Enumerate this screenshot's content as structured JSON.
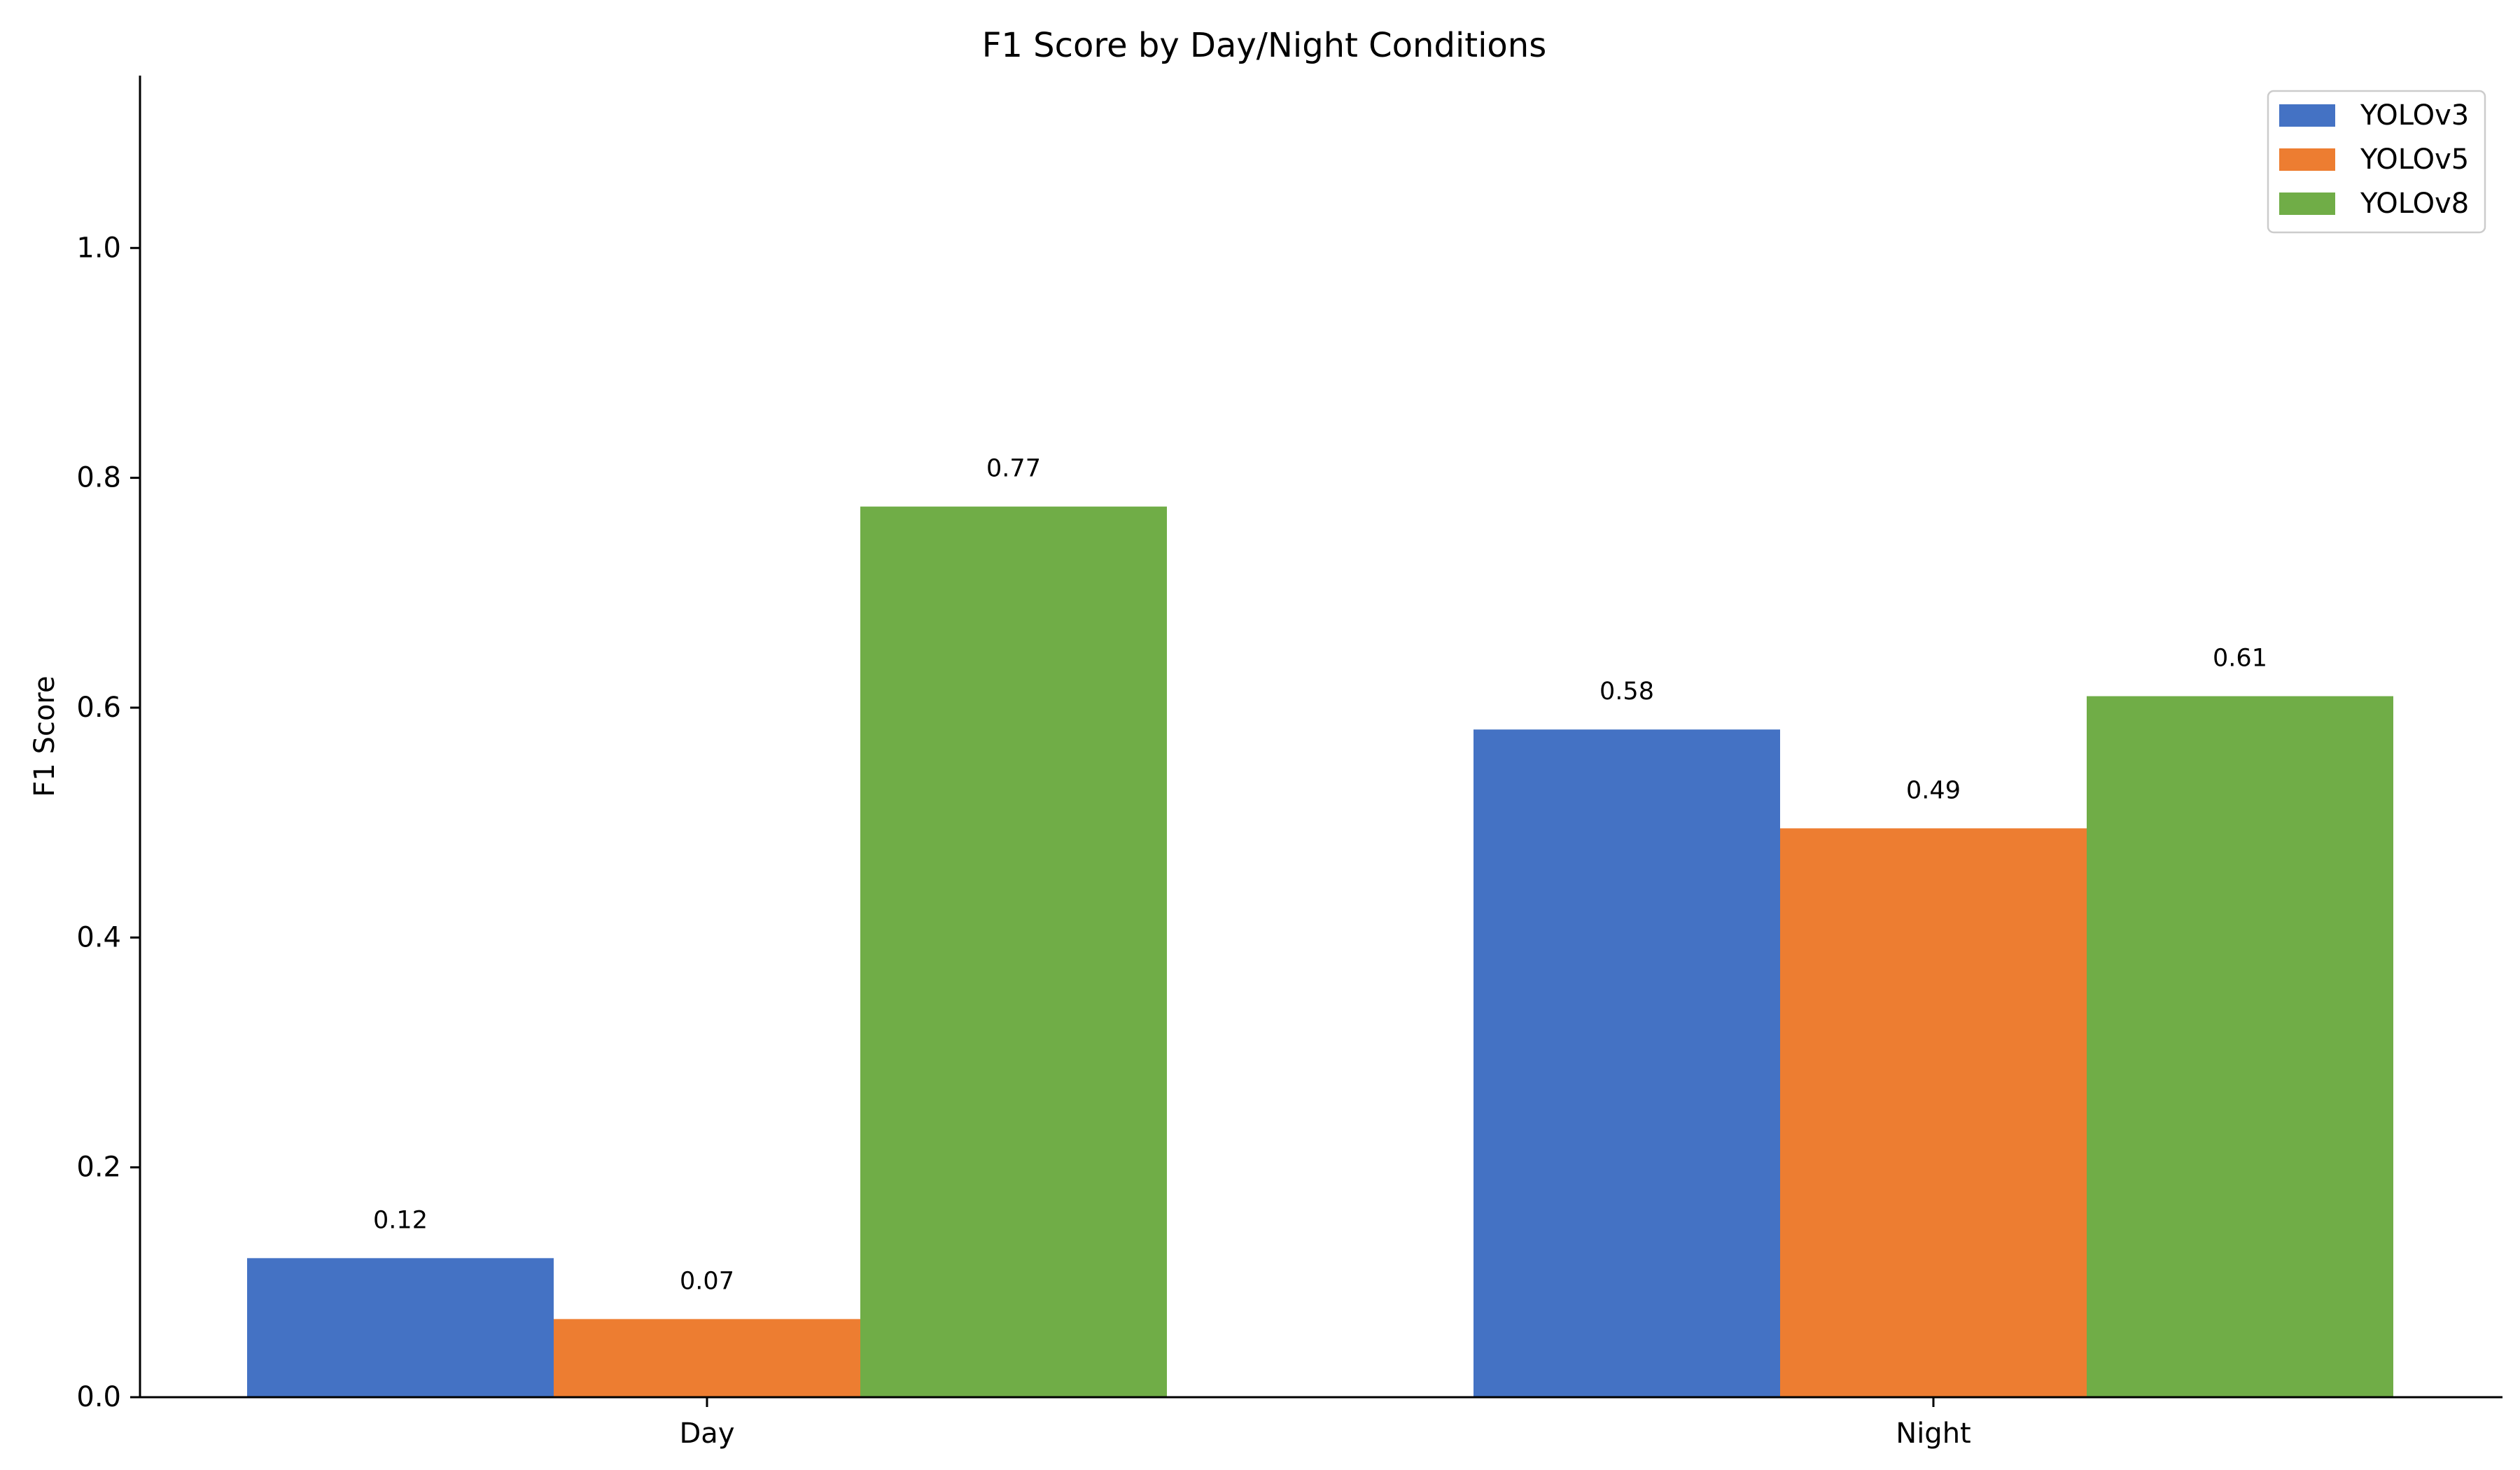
{
  "chart_data": {
    "type": "bar",
    "title": "F1 Score by Day/Night Conditions",
    "xlabel": "",
    "ylabel": "F1 Score",
    "categories": [
      "Day",
      "Night"
    ],
    "series": [
      {
        "name": "YOLOv3",
        "color": "#4472c4",
        "values": [
          0.121,
          0.581
        ],
        "labels": [
          "0.12",
          "0.58"
        ]
      },
      {
        "name": "YOLOv5",
        "color": "#ed7d31",
        "values": [
          0.068,
          0.495
        ],
        "labels": [
          "0.07",
          "0.49"
        ]
      },
      {
        "name": "YOLOv8",
        "color": "#70ad47",
        "values": [
          0.775,
          0.61
        ],
        "labels": [
          "0.77",
          "0.61"
        ]
      }
    ],
    "ylim": [
      0,
      1.15
    ],
    "yticks": [
      0.0,
      0.2,
      0.4,
      0.6,
      0.8,
      1.0
    ],
    "ytick_labels": [
      "0.0",
      "0.2",
      "0.4",
      "0.6",
      "0.8",
      "1.0"
    ],
    "grid": false,
    "legend_position": "top-right"
  }
}
